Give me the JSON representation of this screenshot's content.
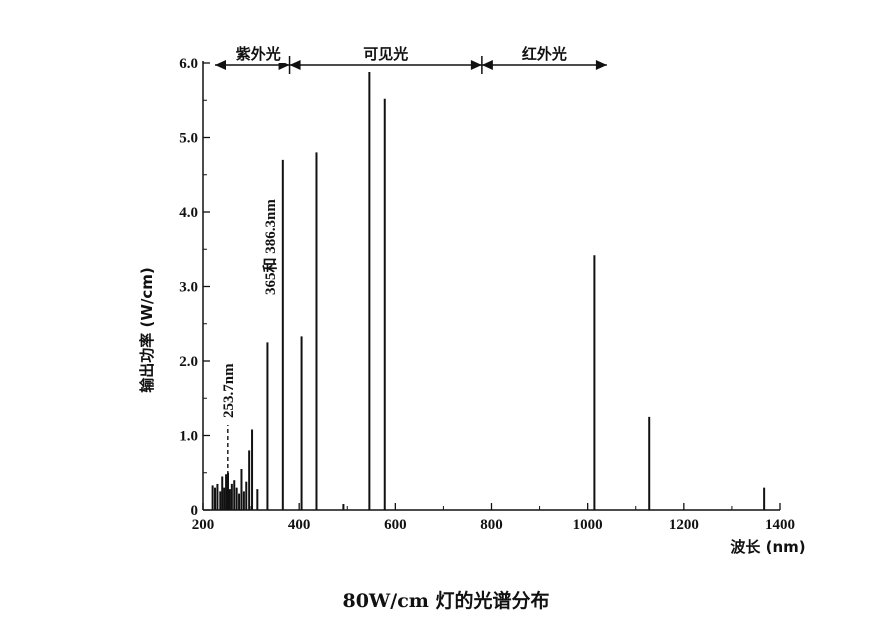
{
  "chart_data": {
    "type": "bar",
    "title": "80W/cm 灯的光谱分布",
    "xlabel": "波长 (nm)",
    "ylabel": "输出功率 (W/cm)",
    "xlim": [
      200,
      1400
    ],
    "ylim": [
      0,
      6.0
    ],
    "x_ticks": [
      200,
      400,
      600,
      800,
      1000,
      1200,
      1400
    ],
    "y_ticks": [
      0,
      1.0,
      2.0,
      3.0,
      4.0,
      5.0,
      6.0
    ],
    "x_tick_labels": [
      "200",
      "400",
      "600",
      "800",
      "1000",
      "1200",
      "1400"
    ],
    "y_tick_labels": [
      "0",
      "1.0",
      "2.0",
      "3.0",
      "4.0",
      "5.0",
      "6.0"
    ],
    "grid": false,
    "series": [
      {
        "x": [
          220,
          225,
          230,
          236,
          240,
          244,
          248,
          252,
          256,
          260,
          265,
          270,
          275,
          280,
          285,
          290,
          296,
          302,
          313,
          334,
          366,
          405,
          436,
          492,
          546,
          578,
          1014,
          1128,
          1367
        ],
        "values": [
          0.33,
          0.3,
          0.35,
          0.25,
          0.45,
          0.3,
          0.48,
          0.5,
          0.28,
          0.35,
          0.4,
          0.3,
          0.22,
          0.55,
          0.25,
          0.38,
          0.8,
          1.08,
          0.28,
          2.25,
          4.7,
          2.33,
          4.8,
          0.08,
          5.88,
          5.52,
          3.42,
          1.25,
          0.3
        ]
      }
    ],
    "regions": [
      {
        "label": "紫外光",
        "from": 200,
        "to": 380
      },
      {
        "label": "可见光",
        "from": 380,
        "to": 780
      },
      {
        "label": "红外光",
        "from": 780,
        "to": 1040
      }
    ],
    "annotations": [
      {
        "text": "253.7nm",
        "x": 253.7
      },
      {
        "text": "365和 386.3nm",
        "x": 375
      }
    ]
  }
}
